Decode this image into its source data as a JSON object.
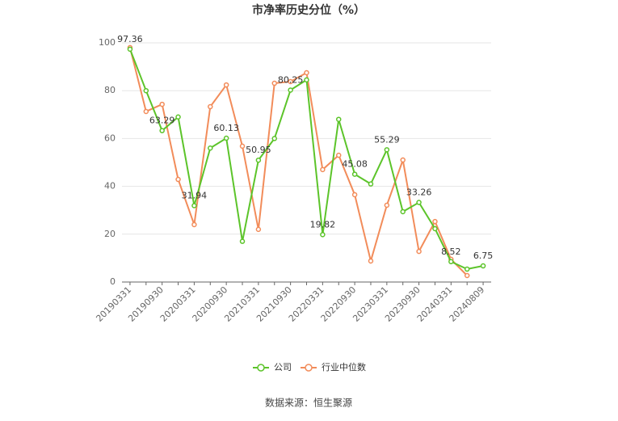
{
  "chart_data": {
    "type": "line",
    "title": "市净率历史分位（%）",
    "source": "数据来源：恒生聚源",
    "categories": [
      "20190331",
      null,
      "20190930",
      null,
      "20200331",
      null,
      "20200930",
      null,
      "20210331",
      null,
      "20210930",
      null,
      "20220331",
      null,
      "20220930",
      null,
      "20230331",
      null,
      "20230930",
      null,
      "20240331",
      null,
      "20240809"
    ],
    "series": [
      {
        "name": "公司",
        "color": "#5cc42a",
        "values": [
          97.36,
          80,
          63.29,
          69,
          31.94,
          56,
          60.13,
          17,
          50.95,
          60,
          80.25,
          84.5,
          19.82,
          68,
          45.08,
          41,
          55.29,
          29.4,
          33.26,
          22.3,
          8.52,
          5.4,
          6.75
        ]
      },
      {
        "name": "行业中位数",
        "color": "#f28c5a",
        "values": [
          98,
          71.3,
          74.3,
          42.9,
          24,
          73.3,
          82.4,
          56.8,
          22,
          83.1,
          83.8,
          87.5,
          47,
          53,
          36.5,
          8.8,
          32.1,
          51,
          12.8,
          25.3,
          9.5,
          2.7,
          null
        ]
      }
    ],
    "ylim": [
      0,
      100
    ],
    "yticks": [
      0,
      20,
      40,
      60,
      80,
      100
    ],
    "grid": true
  }
}
